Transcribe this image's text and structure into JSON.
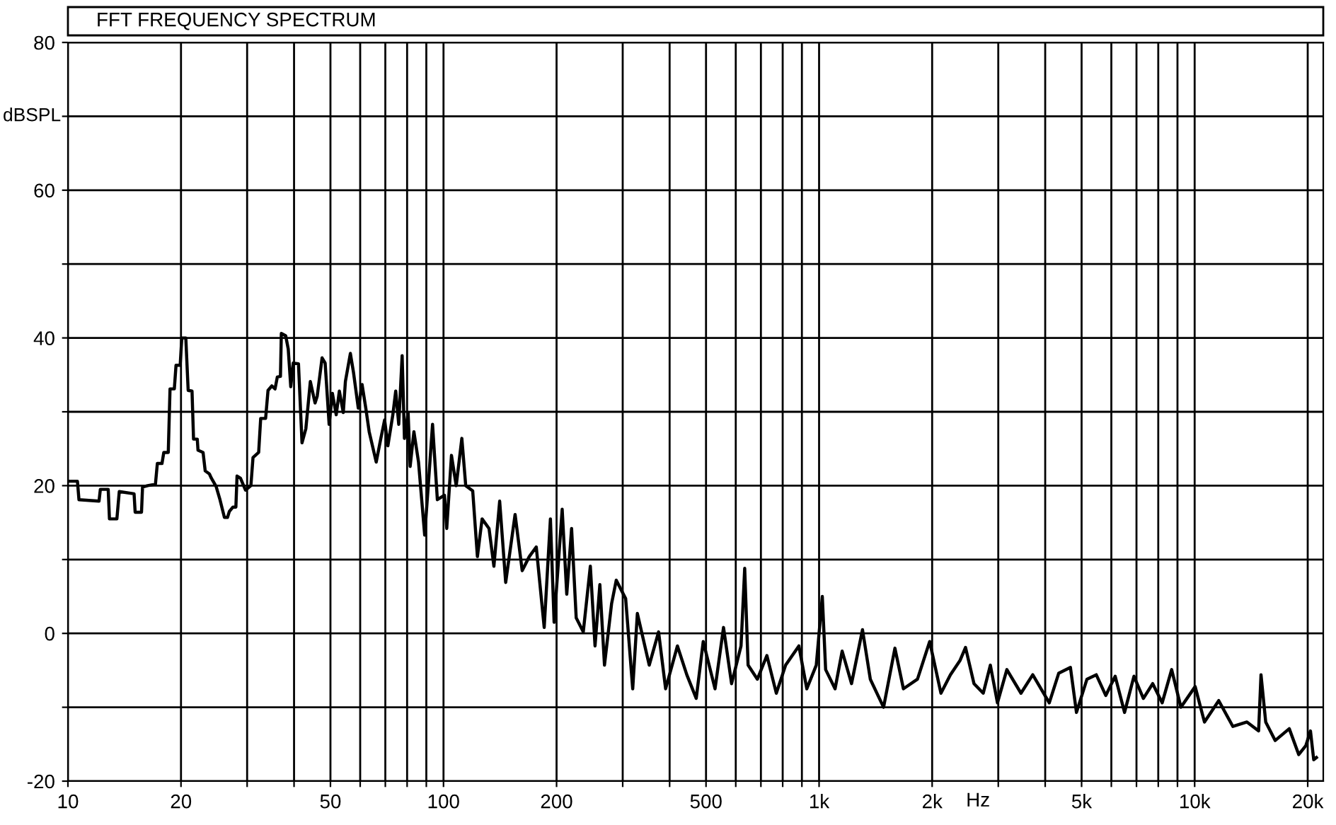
{
  "chart_data": {
    "type": "line",
    "title": "FFT FREQUENCY SPECTRUM",
    "xlabel": "Hz",
    "ylabel": "dBSPL",
    "log": "x",
    "grid": true,
    "marker": "none",
    "line_style": "solid",
    "xlim": [
      10,
      22000
    ],
    "ylim": [
      -20,
      80
    ],
    "xticks": [
      10,
      20,
      {
        "value": 30,
        "label": null
      },
      {
        "value": 40,
        "label": null
      },
      50,
      {
        "value": 60,
        "label": null
      },
      {
        "value": 70,
        "label": null
      },
      {
        "value": 80,
        "label": null
      },
      {
        "value": 90,
        "label": null
      },
      100,
      200,
      {
        "value": 300,
        "label": null
      },
      {
        "value": 400,
        "label": null
      },
      500,
      {
        "value": 600,
        "label": null
      },
      {
        "value": 700,
        "label": null
      },
      {
        "value": 800,
        "label": null
      },
      {
        "value": 900,
        "label": null
      },
      {
        "value": 1000,
        "label": "1k"
      },
      {
        "value": 2000,
        "label": "2k"
      },
      {
        "value": 3000,
        "label": null
      },
      {
        "value": 4000,
        "label": null
      },
      {
        "value": 5000,
        "label": "5k"
      },
      {
        "value": 6000,
        "label": null
      },
      {
        "value": 7000,
        "label": null
      },
      {
        "value": 8000,
        "label": null
      },
      {
        "value": 9000,
        "label": null
      },
      {
        "value": 10000,
        "label": "10k"
      },
      {
        "value": 20000,
        "label": "20k"
      }
    ],
    "yticks": [
      -20,
      {
        "value": -10,
        "label": null
      },
      0,
      {
        "value": 10,
        "label": null
      },
      20,
      {
        "value": 30,
        "label": null
      },
      40,
      {
        "value": 50,
        "label": null
      },
      60,
      {
        "value": 70,
        "label": null
      },
      80
    ],
    "series": [
      {
        "color": "#000000",
        "x": [
          10,
          10.6,
          10.7,
          12.1,
          12.2,
          12.8,
          12.9,
          13.5,
          13.7,
          15.0,
          15.1,
          15.7,
          15.8,
          16.3,
          17.1,
          17.3,
          17.8,
          18.0,
          18.5,
          18.7,
          19.2,
          19.4,
          19.9,
          20.1,
          20.6,
          20.9,
          21.4,
          21.6,
          22.1,
          22.2,
          22.9,
          23.2,
          23.8,
          24.1,
          24.8,
          25.4,
          26.1,
          26.6,
          26.9,
          27.5,
          28.0,
          28.2,
          28.8,
          29.7,
          30.7,
          31.1,
          32.2,
          32.6,
          33.6,
          34.1,
          34.9,
          35.6,
          36.1,
          36.8,
          37.0,
          38.0,
          38.6,
          39.2,
          39.8,
          41.1,
          42.0,
          43.0,
          44.2,
          45.5,
          46.1,
          47.5,
          48.4,
          49.6,
          50.6,
          51.8,
          52.8,
          54.1,
          54.8,
          56.5,
          57.6,
          59.3,
          60.7,
          62.1,
          63.4,
          66.2,
          68.1,
          69.7,
          71.1,
          73.3,
          74.6,
          76.0,
          77.6,
          78.7,
          80.5,
          81.5,
          83.4,
          85.8,
          89.1,
          90.9,
          93.5,
          96.3,
          100.6,
          102.0,
          105.0,
          108.1,
          111.9,
          114.6,
          119.6,
          123.1,
          126.7,
          132.2,
          136.2,
          141.1,
          146.4,
          155.1,
          162.0,
          169.2,
          176.6,
          185.4,
          192.6,
          197.0,
          207.0,
          212.9,
          219.3,
          225.6,
          235.6,
          246.0,
          253.2,
          260.8,
          268.3,
          280.2,
          288.4,
          305.5,
          319.0,
          328.2,
          353.0,
          373.8,
          390.3,
          419.6,
          444.4,
          470.9,
          491.5,
          528.4,
          556.6,
          584.8,
          619.7,
          633.8,
          647.1,
          685.1,
          726.1,
          769.4,
          814.6,
          883.5,
          927.5,
          982.9,
          1020,
          1041,
          1103,
          1152,
          1220,
          1305,
          1369,
          1485,
          1592,
          1677,
          1828,
          1970,
          2111,
          2237,
          2371,
          2454,
          2585,
          2736,
          2858,
          2985,
          3162,
          3448,
          3706,
          4101,
          4345,
          4669,
          4845,
          5167,
          5470,
          5798,
          6143,
          6506,
          6893,
          7302,
          7732,
          8194,
          8684,
          9194,
          10030,
          10620,
          11590,
          12640,
          13780,
          14800,
          15020,
          15460,
          16380,
          17860,
          18930,
          19770,
          20340,
          20750,
          21100
        ],
        "values": [
          20.6,
          20.6,
          18.1,
          17.9,
          19.5,
          19.5,
          15.5,
          15.5,
          19.2,
          18.9,
          16.4,
          16.4,
          19.8,
          20.0,
          20.2,
          23.0,
          23.0,
          24.5,
          24.5,
          33.1,
          33.1,
          36.3,
          36.3,
          40.0,
          40.0,
          32.9,
          32.8,
          26.3,
          26.3,
          24.8,
          24.5,
          22.0,
          21.6,
          21.0,
          19.9,
          18.1,
          15.7,
          15.7,
          16.5,
          17.1,
          17.1,
          21.3,
          21.0,
          19.4,
          20.0,
          23.8,
          24.5,
          29.1,
          29.1,
          32.9,
          33.5,
          33.1,
          34.7,
          34.8,
          40.6,
          40.3,
          38.5,
          33.4,
          36.6,
          36.5,
          25.8,
          27.7,
          34.1,
          31.2,
          32.1,
          37.3,
          36.6,
          28.3,
          32.5,
          29.6,
          32.8,
          29.9,
          34.1,
          37.9,
          35.3,
          30.5,
          33.7,
          30.5,
          27.3,
          23.2,
          26.4,
          28.9,
          25.4,
          29.6,
          32.8,
          28.3,
          37.6,
          26.4,
          29.9,
          22.6,
          27.3,
          23.2,
          13.3,
          19.4,
          28.3,
          18.1,
          18.7,
          14.2,
          24.1,
          20.0,
          26.4,
          20.0,
          19.3,
          10.4,
          15.5,
          14.2,
          9.1,
          17.9,
          6.9,
          16.1,
          8.5,
          10.4,
          11.7,
          0.8,
          15.5,
          1.5,
          16.8,
          5.3,
          14.2,
          2.1,
          0.2,
          9.1,
          -1.7,
          6.6,
          -4.3,
          4.0,
          7.2,
          4.7,
          -7.5,
          2.7,
          -4.3,
          0.2,
          -7.5,
          -1.7,
          -5.6,
          -8.8,
          -1.1,
          -7.5,
          0.8,
          -6.8,
          -1.7,
          8.8,
          -4.3,
          -6.2,
          -3.0,
          -8.1,
          -4.3,
          -1.7,
          -7.5,
          -4.3,
          5.0,
          -4.9,
          -7.5,
          -2.4,
          -6.8,
          0.5,
          -6.2,
          -10.0,
          -2.0,
          -7.5,
          -6.2,
          -1.1,
          -8.1,
          -5.6,
          -3.7,
          -1.9,
          -6.8,
          -8.1,
          -4.3,
          -9.4,
          -4.9,
          -8.1,
          -5.6,
          -9.4,
          -5.4,
          -4.6,
          -10.7,
          -6.2,
          -5.6,
          -8.4,
          -5.8,
          -10.7,
          -5.8,
          -8.8,
          -6.8,
          -9.4,
          -4.9,
          -10.0,
          -7.2,
          -12.0,
          -9.1,
          -12.6,
          -12.0,
          -13.2,
          -5.6,
          -12.0,
          -14.5,
          -12.9,
          -16.4,
          -15.2,
          -13.2,
          -17.1,
          -16.8
        ]
      }
    ]
  }
}
